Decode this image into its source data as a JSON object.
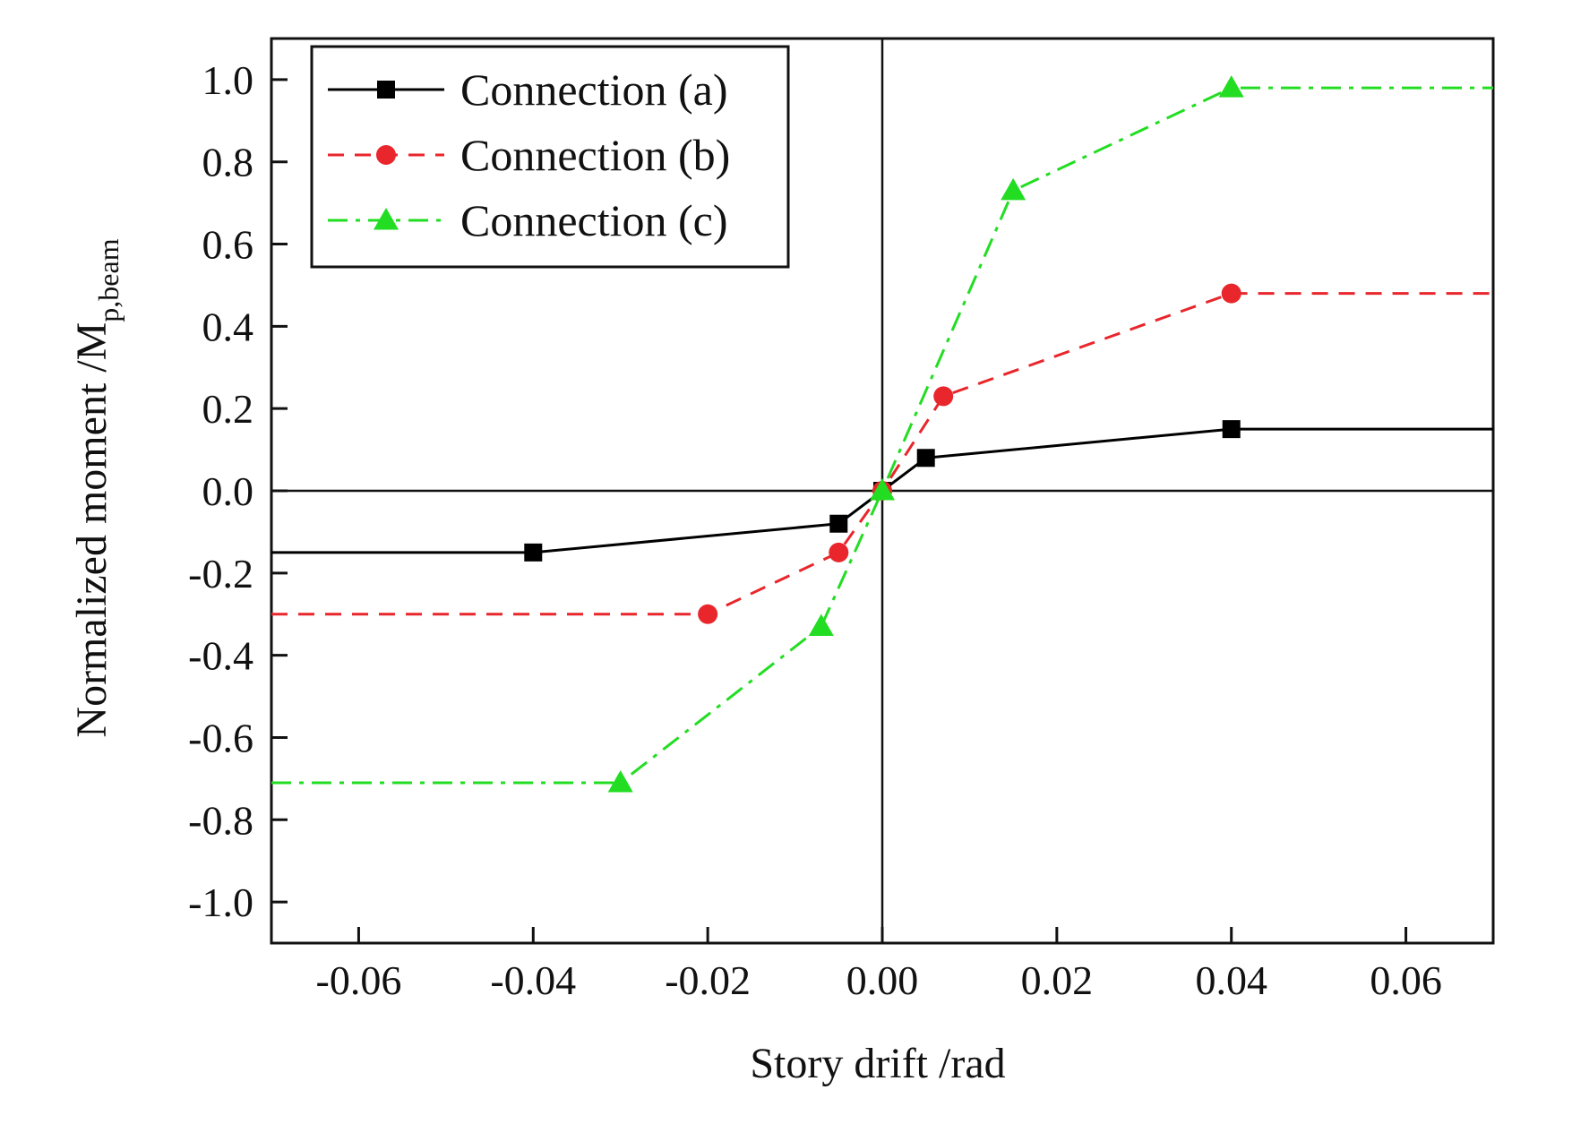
{
  "chart_data": {
    "type": "line",
    "title": "",
    "xlabel": "Story drift /rad",
    "ylabel": {
      "main": "Normalized moment /M",
      "subscript": "p,beam"
    },
    "xlim": [
      -0.07,
      0.07
    ],
    "ylim": [
      -1.1,
      1.1
    ],
    "xticks": [
      -0.06,
      -0.04,
      -0.02,
      0.0,
      0.02,
      0.04,
      0.06
    ],
    "xtick_labels": [
      "-0.06",
      "-0.04",
      "-0.02",
      "0.00",
      "0.02",
      "0.04",
      "0.06"
    ],
    "yticks": [
      1.0,
      0.8,
      0.6,
      0.4,
      0.2,
      0.0,
      -0.2,
      -0.4,
      -0.6,
      -0.8,
      -1.0
    ],
    "ytick_labels": [
      "1.0",
      "0.8",
      "0.6",
      "0.4",
      "0.2",
      "0.0",
      "-0.2",
      "-0.4",
      "-0.6",
      "-0.8",
      "-1.0"
    ],
    "grid": false,
    "legend_position": "top-left",
    "series": [
      {
        "name": "Connection (a)",
        "color": "#000000",
        "line_style": "solid",
        "marker": "square",
        "x": [
          -0.07,
          -0.04,
          -0.005,
          0.0,
          0.005,
          0.04,
          0.07
        ],
        "y": [
          -0.15,
          -0.15,
          -0.08,
          0.0,
          0.08,
          0.15,
          0.15
        ],
        "marker_x": [
          -0.04,
          -0.005,
          0.0,
          0.005,
          0.04
        ],
        "marker_y": [
          -0.15,
          -0.08,
          0.0,
          0.08,
          0.15
        ]
      },
      {
        "name": "Connection (b)",
        "color": "#e8262b",
        "line_style": "dashed",
        "marker": "circle",
        "x": [
          -0.07,
          -0.02,
          -0.005,
          0.0,
          0.007,
          0.04,
          0.07
        ],
        "y": [
          -0.3,
          -0.3,
          -0.15,
          0.0,
          0.23,
          0.48,
          0.48
        ],
        "marker_x": [
          -0.02,
          -0.005,
          0.0,
          0.007,
          0.04
        ],
        "marker_y": [
          -0.3,
          -0.15,
          0.0,
          0.23,
          0.48
        ]
      },
      {
        "name": "Connection (c)",
        "color": "#22dd22",
        "line_style": "dashdot",
        "marker": "triangle",
        "x": [
          -0.07,
          -0.03,
          -0.007,
          0.0,
          0.015,
          0.04,
          0.07
        ],
        "y": [
          -0.71,
          -0.71,
          -0.33,
          0.0,
          0.73,
          0.98,
          0.98
        ],
        "marker_x": [
          -0.03,
          -0.007,
          0.0,
          0.015,
          0.04
        ],
        "marker_y": [
          -0.71,
          -0.33,
          0.0,
          0.73,
          0.98
        ]
      }
    ]
  }
}
